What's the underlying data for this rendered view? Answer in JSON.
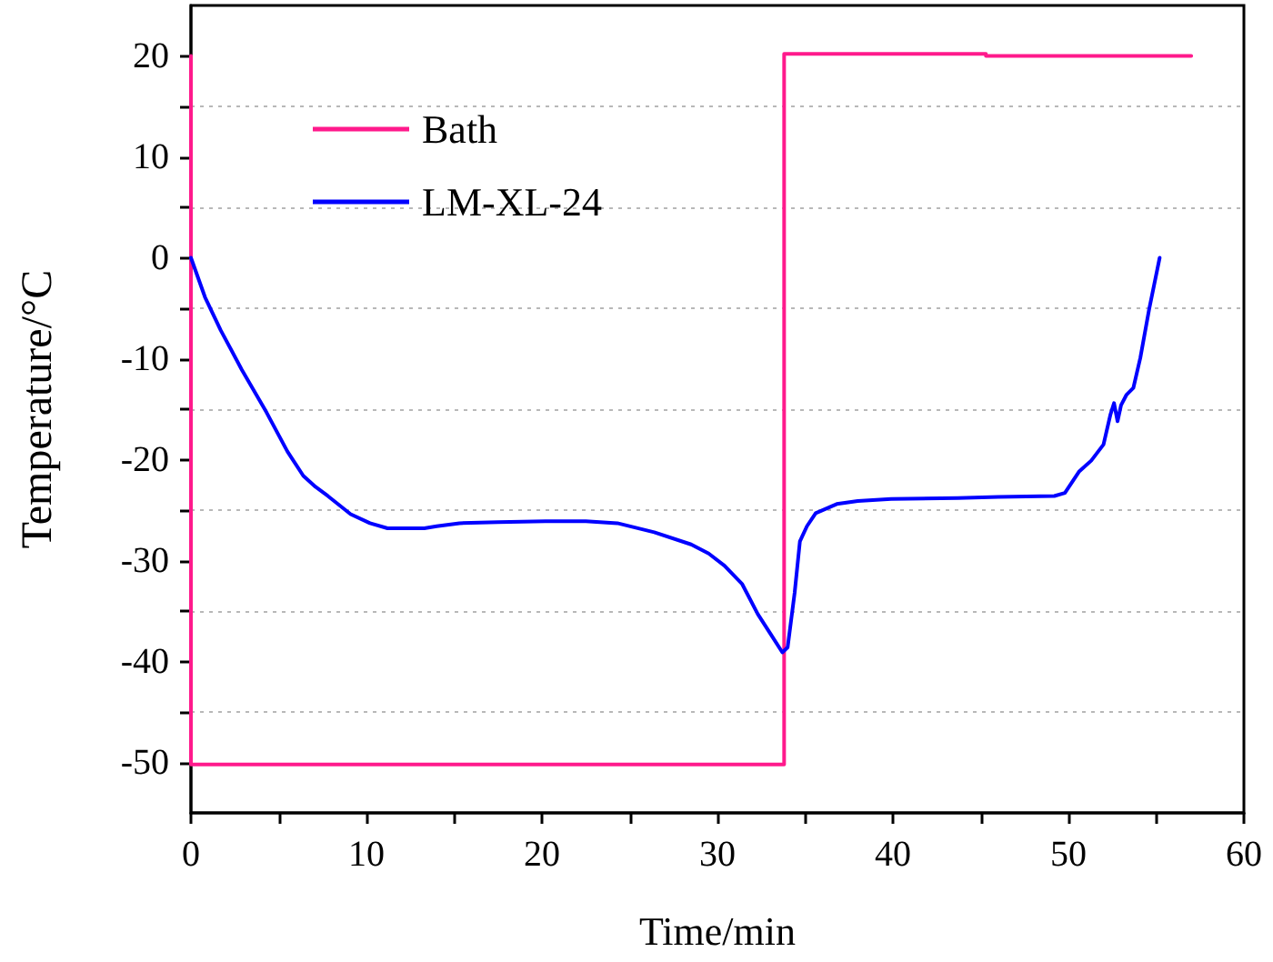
{
  "chart_data": {
    "type": "line",
    "xlabel": "Time/min",
    "ylabel": "Temperature/°C",
    "xlim": [
      0,
      60
    ],
    "xticks": [
      0,
      {
        "value": 5,
        "label": null
      },
      10,
      {
        "value": 15,
        "label": null
      },
      20,
      {
        "value": 25,
        "label": null
      },
      30,
      {
        "value": 35,
        "label": null
      },
      40,
      {
        "value": 45,
        "label": null
      },
      50,
      {
        "value": 55,
        "label": null
      },
      60
    ],
    "ylim": [
      -55,
      25
    ],
    "yticks": [
      -50,
      {
        "value": -45,
        "label": null
      },
      -40,
      {
        "value": -35,
        "label": null
      },
      -30,
      {
        "value": -25,
        "label": null
      },
      -20,
      {
        "value": -15,
        "label": null
      },
      -10,
      {
        "value": -5,
        "label": null
      },
      0,
      {
        "value": 5,
        "label": null
      },
      10,
      {
        "value": 15,
        "label": null
      },
      20
    ],
    "grid": "y",
    "legend": "top left",
    "marker": "none",
    "line_style": "solid",
    "series": [
      {
        "name": "Bath",
        "color": "#ff1a8c",
        "x": [
          0,
          0,
          33.8,
          33.8,
          45.3,
          45.3,
          57
        ],
        "values": [
          20,
          -50.2,
          -50.2,
          20.2,
          20.2,
          20,
          20
        ]
      },
      {
        "name": "LM-XL-24",
        "color": "#0000ff",
        "x": [
          0,
          0.8,
          1.7,
          2.9,
          4.3,
          5.5,
          6.4,
          7.1,
          7.8,
          9.1,
          10.2,
          11.2,
          13.3,
          14,
          15.3,
          17.5,
          20.2,
          22.5,
          24.3,
          26.4,
          28.5,
          29.5,
          30.4,
          31.4,
          32.3,
          33,
          33.7,
          34,
          34.4,
          34.7,
          35.1,
          35.6,
          36.8,
          38,
          39.9,
          43.7,
          46,
          49.2,
          49.8,
          50.6,
          51.3,
          52,
          52.4,
          52.6,
          52.8,
          53,
          53.3,
          53.7,
          54.1,
          54.6,
          55.2
        ],
        "values": [
          0,
          -3.9,
          -7.2,
          -11.1,
          -15.3,
          -19.2,
          -21.6,
          -22.7,
          -23.6,
          -25.4,
          -26.3,
          -26.8,
          -26.8,
          -26.6,
          -26.3,
          -26.2,
          -26.1,
          -26.1,
          -26.3,
          -27.2,
          -28.4,
          -29.3,
          -30.5,
          -32.3,
          -35.3,
          -37.2,
          -39.1,
          -38.6,
          -33.2,
          -28.1,
          -26.6,
          -25.3,
          -24.4,
          -24.1,
          -23.9,
          -23.8,
          -23.7,
          -23.6,
          -23.3,
          -21.2,
          -20.1,
          -18.5,
          -15.5,
          -14.4,
          -16.2,
          -14.6,
          -13.6,
          -12.9,
          -9.9,
          -5.1,
          0
        ]
      }
    ]
  }
}
